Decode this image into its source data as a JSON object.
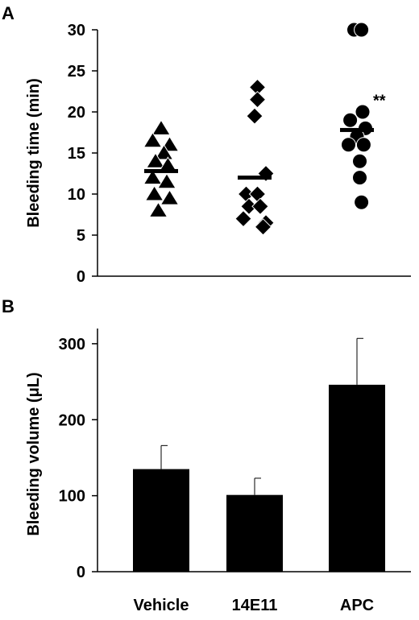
{
  "chart_data": [
    {
      "panel": "A",
      "type": "scatter",
      "ylabel": "Bleeding time (min)",
      "ylim": [
        0,
        30
      ],
      "yticks": [
        0,
        5,
        10,
        15,
        20,
        25,
        30
      ],
      "categories": [
        "Vehicle",
        "14E11",
        "APC"
      ],
      "series": [
        {
          "category": "Vehicle",
          "marker": "triangle",
          "mean": 12.8,
          "points": [
            [
              0,
              18
            ],
            [
              -0.15,
              16.5
            ],
            [
              0.15,
              16
            ],
            [
              0.05,
              15
            ],
            [
              -0.1,
              14
            ],
            [
              0.12,
              13.5
            ],
            [
              -0.15,
              12
            ],
            [
              0.1,
              11.5
            ],
            [
              -0.12,
              10
            ],
            [
              0.15,
              9.5
            ],
            [
              -0.05,
              8
            ]
          ]
        },
        {
          "category": "14E11",
          "marker": "diamond",
          "mean": 12.0,
          "points": [
            [
              0.05,
              23
            ],
            [
              0.05,
              21.5
            ],
            [
              0,
              19.5
            ],
            [
              0.2,
              12.5
            ],
            [
              -0.15,
              10
            ],
            [
              0.05,
              10
            ],
            [
              -0.1,
              8.5
            ],
            [
              0.1,
              8.5
            ],
            [
              -0.2,
              7
            ],
            [
              0.2,
              6.5
            ],
            [
              0.15,
              6
            ]
          ]
        },
        {
          "category": "APC",
          "marker": "circle",
          "mean": 17.8,
          "points": [
            [
              -0.05,
              30
            ],
            [
              0.08,
              30
            ],
            [
              0.1,
              20
            ],
            [
              -0.12,
              19
            ],
            [
              0.15,
              18
            ],
            [
              0,
              17
            ],
            [
              -0.15,
              16
            ],
            [
              0.12,
              16
            ],
            [
              0.05,
              14
            ],
            [
              0.05,
              12
            ],
            [
              0.08,
              9
            ]
          ]
        }
      ],
      "annotations": [
        {
          "category": "APC",
          "text": "**",
          "y": 21.5
        }
      ]
    },
    {
      "panel": "B",
      "type": "bar",
      "ylabel": "Bleeding volume (μL)",
      "ylim": [
        0,
        320
      ],
      "yticks": [
        0,
        100,
        200,
        300
      ],
      "categories": [
        "Vehicle",
        "14E11",
        "APC"
      ],
      "values": [
        135,
        101,
        246
      ],
      "error": [
        31,
        22,
        61
      ]
    }
  ],
  "colors": {
    "marks": "#000000",
    "background": "#ffffff"
  }
}
